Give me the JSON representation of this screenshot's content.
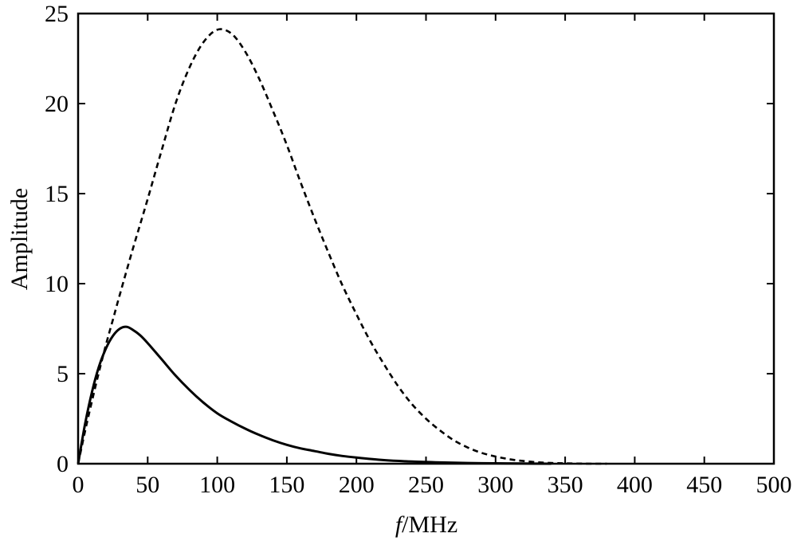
{
  "chart_data": {
    "type": "line",
    "xlabel_italic": "f",
    "xlabel_unit": "/MHz",
    "ylabel": "Amplitude",
    "xlim": [
      0,
      500
    ],
    "ylim": [
      0,
      25
    ],
    "xticks": [
      0,
      50,
      100,
      150,
      200,
      250,
      300,
      350,
      400,
      450,
      500
    ],
    "yticks": [
      0,
      5,
      10,
      15,
      20,
      25
    ],
    "grid": false,
    "series": [
      {
        "style": "dashed",
        "color": "#000000",
        "x": [
          0,
          5,
          10,
          15,
          20,
          25,
          30,
          40,
          50,
          60,
          70,
          80,
          90,
          100,
          110,
          120,
          130,
          140,
          150,
          160,
          170,
          180,
          190,
          200,
          210,
          220,
          230,
          240,
          250,
          260,
          270,
          280,
          290,
          300,
          310,
          320,
          330,
          340,
          350,
          360,
          370,
          380
        ],
        "y": [
          0,
          1.8,
          3.5,
          5.1,
          6.6,
          8.0,
          9.4,
          12.1,
          14.7,
          17.4,
          20.0,
          22.0,
          23.4,
          24.1,
          23.9,
          22.9,
          21.4,
          19.6,
          17.7,
          15.6,
          13.6,
          11.7,
          9.9,
          8.3,
          6.8,
          5.5,
          4.3,
          3.3,
          2.5,
          1.85,
          1.3,
          0.9,
          0.6,
          0.4,
          0.25,
          0.15,
          0.08,
          0.04,
          0.02,
          0.01,
          0.0,
          0.0
        ]
      },
      {
        "style": "solid",
        "color": "#000000",
        "x": [
          0,
          5,
          10,
          15,
          20,
          25,
          30,
          35,
          40,
          45,
          50,
          60,
          70,
          80,
          90,
          100,
          110,
          120,
          130,
          140,
          150,
          160,
          170,
          180,
          190,
          200,
          220,
          240,
          260,
          280,
          300,
          320,
          340
        ],
        "y": [
          0,
          2.2,
          4.0,
          5.4,
          6.4,
          7.1,
          7.5,
          7.6,
          7.4,
          7.1,
          6.7,
          5.8,
          4.9,
          4.1,
          3.4,
          2.8,
          2.35,
          1.95,
          1.6,
          1.3,
          1.05,
          0.85,
          0.7,
          0.55,
          0.43,
          0.34,
          0.2,
          0.12,
          0.07,
          0.04,
          0.02,
          0.01,
          0.0
        ]
      }
    ]
  }
}
